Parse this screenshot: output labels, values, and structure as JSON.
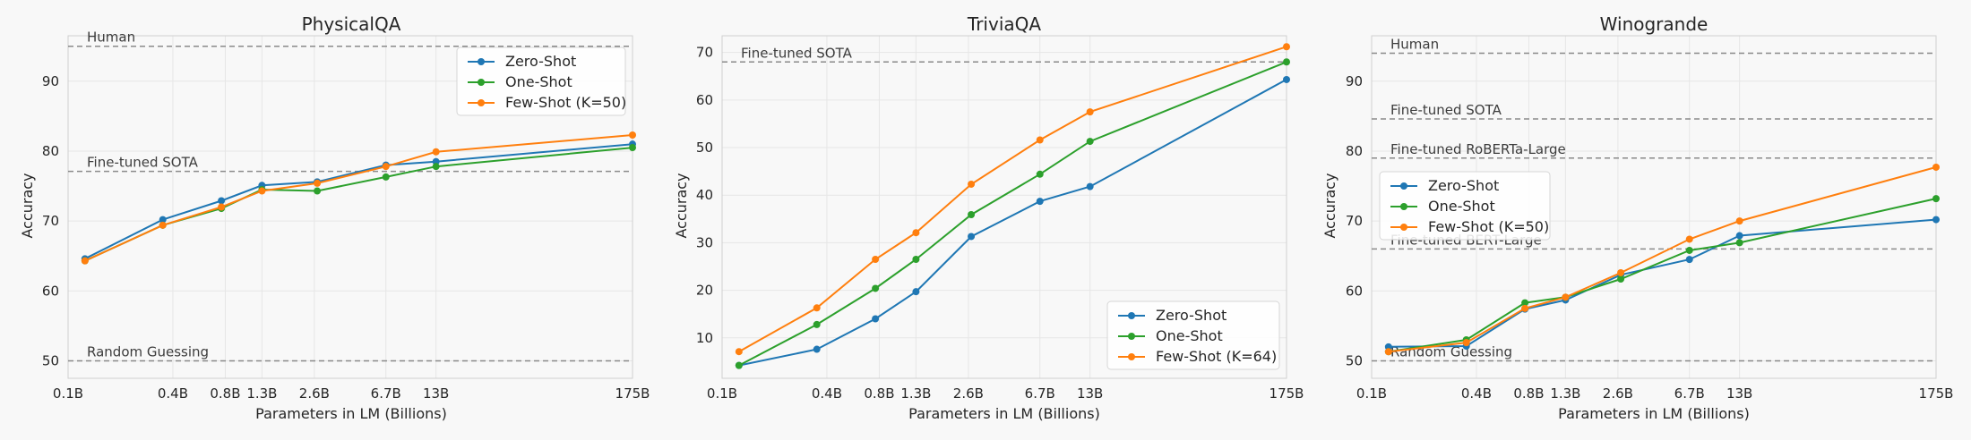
{
  "figure": {
    "background": "#f8f8f8",
    "grid": true
  },
  "colors": {
    "zero": "#1f77b4",
    "one": "#2ca02c",
    "few": "#ff7f0e",
    "ref": "#8a8a8a"
  },
  "chart_data": [
    {
      "type": "line",
      "title": "PhysicalQA",
      "xlabel": "Parameters in LM (Billions)",
      "ylabel": "Accuracy",
      "x": [
        0.125,
        0.35,
        0.76,
        1.3,
        2.7,
        6.7,
        13,
        175
      ],
      "x_ticks": [
        0.1,
        0.4,
        0.8,
        1.3,
        2.6,
        6.7,
        13,
        175
      ],
      "x_tick_labels": [
        "0.1B",
        "0.4B",
        "0.8B",
        "1.3B",
        "2.6B",
        "6.7B",
        "13B",
        "175B"
      ],
      "ylim": [
        47.5,
        96.5
      ],
      "y_ticks": [
        50,
        60,
        70,
        80,
        90
      ],
      "legend_position": "top-right",
      "series": [
        {
          "name": "Zero-Shot",
          "color": "#1f77b4",
          "values": [
            64.6,
            70.2,
            72.9,
            75.1,
            75.6,
            78.0,
            78.5,
            81.0
          ]
        },
        {
          "name": "One-Shot",
          "color": "#2ca02c",
          "values": [
            64.3,
            69.4,
            71.8,
            74.5,
            74.3,
            76.3,
            77.8,
            80.5
          ]
        },
        {
          "name": "Few-Shot (K=50)",
          "color": "#ff7f0e",
          "values": [
            64.3,
            69.4,
            72.0,
            74.3,
            75.4,
            77.8,
            79.9,
            82.3
          ]
        }
      ],
      "reference_lines": [
        {
          "label": "Human",
          "y": 95.0
        },
        {
          "label": "Fine-tuned SOTA",
          "y": 77.1
        },
        {
          "label": "Random Guessing",
          "y": 50.0
        }
      ]
    },
    {
      "type": "line",
      "title": "TriviaQA",
      "xlabel": "Parameters in LM (Billions)",
      "ylabel": "Accuracy",
      "x": [
        0.125,
        0.35,
        0.76,
        1.3,
        2.7,
        6.7,
        13,
        175
      ],
      "x_ticks": [
        0.1,
        0.4,
        0.8,
        1.3,
        2.6,
        6.7,
        13,
        175
      ],
      "x_tick_labels": [
        "0.1B",
        "0.4B",
        "0.8B",
        "1.3B",
        "2.6B",
        "6.7B",
        "13B",
        "175B"
      ],
      "ylim": [
        1.5,
        73.5
      ],
      "y_ticks": [
        10,
        20,
        30,
        40,
        50,
        60,
        70
      ],
      "legend_position": "bottom-right",
      "series": [
        {
          "name": "Zero-Shot",
          "color": "#1f77b4",
          "values": [
            4.2,
            7.6,
            14.0,
            19.7,
            31.3,
            38.7,
            41.8,
            64.3
          ]
        },
        {
          "name": "One-Shot",
          "color": "#2ca02c",
          "values": [
            4.2,
            12.8,
            20.4,
            26.5,
            35.9,
            44.4,
            51.3,
            68.0
          ]
        },
        {
          "name": "Few-Shot (K=64)",
          "color": "#ff7f0e",
          "values": [
            7.1,
            16.3,
            26.5,
            32.1,
            42.3,
            51.6,
            57.5,
            71.2
          ]
        }
      ],
      "reference_lines": [
        {
          "label": "Fine-tuned SOTA",
          "y": 68.0
        }
      ]
    },
    {
      "type": "line",
      "title": "Winogrande",
      "xlabel": "Parameters in LM (Billions)",
      "ylabel": "Accuracy",
      "x": [
        0.125,
        0.35,
        0.76,
        1.3,
        2.7,
        6.7,
        13,
        175
      ],
      "x_ticks": [
        0.1,
        0.4,
        0.8,
        1.3,
        2.6,
        6.7,
        13,
        175
      ],
      "x_tick_labels": [
        "0.1B",
        "0.4B",
        "0.8B",
        "1.3B",
        "2.6B",
        "6.7B",
        "13B",
        "175B"
      ],
      "ylim": [
        47.5,
        96.5
      ],
      "y_ticks": [
        50,
        60,
        70,
        80,
        90
      ],
      "legend_position": "center-left",
      "series": [
        {
          "name": "Zero-Shot",
          "color": "#1f77b4",
          "values": [
            52.0,
            52.1,
            57.4,
            58.7,
            62.3,
            64.5,
            67.9,
            70.2
          ]
        },
        {
          "name": "One-Shot",
          "color": "#2ca02c",
          "values": [
            51.3,
            53.0,
            58.3,
            59.1,
            61.7,
            65.8,
            66.9,
            73.2
          ]
        },
        {
          "name": "Few-Shot (K=50)",
          "color": "#ff7f0e",
          "values": [
            51.3,
            52.6,
            57.5,
            59.1,
            62.6,
            67.4,
            70.0,
            77.7
          ]
        }
      ],
      "reference_lines": [
        {
          "label": "Human",
          "y": 94.0
        },
        {
          "label": "Fine-tuned SOTA",
          "y": 84.6
        },
        {
          "label": "Fine-tuned RoBERTa-Large",
          "y": 79.0
        },
        {
          "label": "Fine-tuned BERT-Large",
          "y": 66.0
        },
        {
          "label": "Random Guessing",
          "y": 50.0
        }
      ]
    }
  ]
}
